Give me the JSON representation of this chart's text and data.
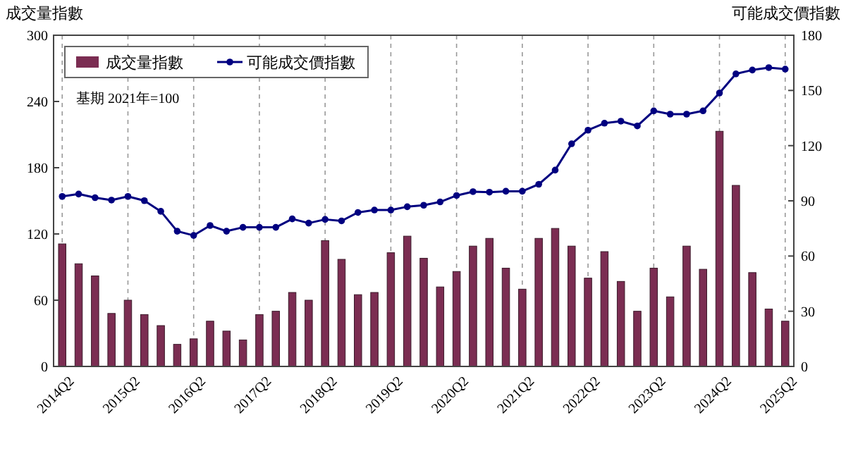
{
  "chart_data": {
    "type": "bar",
    "categories": [
      "2014Q2",
      null,
      null,
      null,
      "2015Q2",
      null,
      null,
      null,
      "2016Q2",
      null,
      null,
      null,
      "2017Q2",
      null,
      null,
      null,
      "2018Q2",
      null,
      null,
      null,
      "2019Q2",
      null,
      null,
      null,
      "2020Q2",
      null,
      null,
      null,
      "2021Q2",
      null,
      null,
      null,
      "2022Q2",
      null,
      null,
      null,
      "2023Q2",
      null,
      null,
      null,
      "2024Q2",
      null,
      null,
      null,
      "2025Q2"
    ],
    "series": [
      {
        "name": "成交量指數",
        "color": "#7b2d52",
        "values": [
          111,
          93,
          82,
          48,
          60,
          47,
          37,
          20,
          25,
          41,
          32,
          24,
          47,
          50,
          67,
          60,
          114,
          97,
          65,
          67,
          103,
          118,
          98,
          72,
          86,
          109,
          116,
          89,
          70,
          116,
          125,
          109,
          80,
          104,
          77,
          50,
          89,
          63,
          109,
          88,
          213,
          164,
          85,
          52,
          41
        ]
      },
      {
        "name": "可能成交價指數",
        "type": "line",
        "axis": "y2",
        "color": "#000080",
        "values": [
          92.4,
          93.7,
          91.7,
          90.4,
          92.4,
          90.1,
          84.3,
          73.5,
          71.2,
          76.6,
          73.5,
          75.6,
          75.6,
          75.6,
          80.2,
          77.9,
          79.9,
          79.1,
          83.7,
          85,
          85,
          86.8,
          87.6,
          89.4,
          92.9,
          95,
          94.7,
          95.2,
          95.2,
          99,
          106.7,
          121,
          128.4,
          132.2,
          133.3,
          130.7,
          138.9,
          137.1,
          137.1,
          138.9,
          148.6,
          159,
          161.1,
          162.4,
          161.6
        ]
      }
    ],
    "ylabel": "成交量指數",
    "y2label": "可能成交價指數",
    "ylim": [
      0,
      300
    ],
    "yticks": [
      0,
      60,
      120,
      180,
      240,
      300
    ],
    "y2lim": [
      0,
      180
    ],
    "y2ticks": [
      0,
      30,
      60,
      90,
      120,
      150,
      180
    ],
    "annotations": [
      "基期 2021年=100"
    ],
    "grid": "x",
    "legend": "top left",
    "marker": "circle",
    "line_style": "solid"
  }
}
